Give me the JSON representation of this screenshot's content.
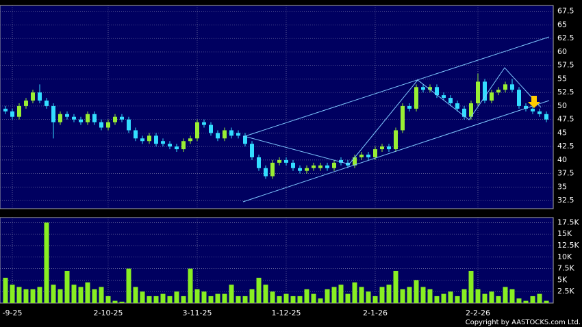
{
  "chart_data": {
    "type": "candlestick",
    "categories": [
      null,
      "-9-25",
      null,
      null,
      null,
      null,
      null,
      null,
      null,
      null,
      null,
      null,
      null,
      null,
      null,
      "2-10-25",
      null,
      null,
      null,
      null,
      null,
      null,
      null,
      null,
      null,
      null,
      null,
      null,
      "3-11-25",
      null,
      null,
      null,
      null,
      null,
      null,
      null,
      null,
      null,
      null,
      null,
      null,
      "1-12-25",
      null,
      null,
      null,
      null,
      null,
      null,
      null,
      null,
      null,
      null,
      null,
      null,
      "2-1-26",
      null,
      null,
      null,
      null,
      null,
      null,
      null,
      null,
      null,
      null,
      null,
      null,
      null,
      null,
      "2-2-26",
      null,
      null,
      null,
      null,
      null,
      null,
      null,
      null,
      null,
      null
    ],
    "open": [
      49.5,
      49,
      48,
      50,
      51,
      52.5,
      51,
      50,
      47,
      48.5,
      48,
      47.5,
      47,
      48.5,
      47,
      46,
      47,
      48,
      47.5,
      45.5,
      44,
      43.5,
      44.5,
      43.5,
      43,
      42.5,
      42,
      43.5,
      44,
      47,
      46.5,
      45,
      44,
      45.5,
      45,
      44.5,
      43,
      40.5,
      38.5,
      37,
      39.5,
      40,
      39.5,
      38.5,
      38,
      38.5,
      38.5,
      39,
      38.5,
      40,
      39.5,
      39,
      40.5,
      41,
      40.5,
      42,
      42.5,
      42,
      45.5,
      50,
      49.5,
      53.5,
      53,
      53.5,
      52,
      51.5,
      50.5,
      49.5,
      48,
      50.5,
      54.5,
      51,
      52.5,
      53,
      54,
      53,
      50,
      49.5,
      49,
      48.5
    ],
    "high": [
      50,
      49.5,
      50.5,
      51.5,
      53,
      54,
      51.5,
      50.5,
      49,
      49,
      48.5,
      48,
      49,
      49,
      47.5,
      47.5,
      48.5,
      48.5,
      48,
      46,
      44.5,
      45,
      45,
      44,
      43.5,
      43,
      44,
      44.5,
      47.5,
      47.5,
      47,
      45.5,
      46,
      46,
      45.5,
      45,
      43.5,
      41,
      39,
      40,
      40.5,
      40.5,
      40,
      39,
      39,
      39.5,
      39.5,
      39.5,
      40,
      40.5,
      40,
      41,
      41.5,
      41.5,
      42.5,
      43,
      43,
      46,
      50.5,
      50.5,
      54,
      54,
      54,
      54,
      52.5,
      52,
      51,
      50,
      51,
      56,
      55,
      53,
      53.5,
      54.5,
      55,
      53.5,
      50.5,
      50,
      49.5,
      49
    ],
    "low": [
      48.5,
      47.5,
      47.5,
      49.5,
      50.5,
      50.5,
      49.5,
      44,
      46.5,
      47.5,
      47,
      46.5,
      46.5,
      46.5,
      45.5,
      45.5,
      46.5,
      47,
      45,
      43.5,
      43,
      43,
      42.5,
      42.5,
      42,
      41.5,
      41.5,
      43,
      43.5,
      46,
      44.5,
      43.5,
      43.5,
      44,
      44,
      42.5,
      40,
      38,
      36.5,
      36.5,
      39,
      39,
      38,
      37.5,
      37.5,
      38,
      38,
      38,
      38,
      39,
      38.5,
      38.5,
      40,
      40,
      40,
      41.5,
      41.5,
      41.5,
      45,
      49,
      49,
      52.5,
      52.5,
      51.5,
      51,
      50,
      49,
      47.5,
      47.5,
      50,
      50.5,
      50.5,
      52,
      52.5,
      52.5,
      49.5,
      49,
      48.5,
      48,
      47
    ],
    "close": [
      49,
      48,
      50,
      51,
      52.5,
      51,
      50,
      47,
      48.5,
      48,
      47.5,
      47,
      48.5,
      47,
      46,
      47,
      48,
      47.5,
      45.5,
      44,
      43.5,
      44.5,
      43,
      43,
      42.5,
      42,
      43.5,
      44,
      47,
      46.5,
      45,
      44,
      45.5,
      44.5,
      44.5,
      43,
      40.5,
      38.5,
      37,
      39.5,
      40,
      39.5,
      38.5,
      38,
      38.5,
      39,
      39,
      38.5,
      39.5,
      39.5,
      39,
      40.5,
      41,
      40.5,
      42,
      42.5,
      42,
      45.5,
      50,
      49.5,
      53.5,
      53,
      53.5,
      52,
      51.5,
      50.5,
      49.5,
      48,
      50.5,
      54.5,
      51,
      52.5,
      53,
      54,
      53,
      50,
      49.5,
      49,
      48.5,
      47.5
    ],
    "volume": [
      5500,
      4000,
      3500,
      3000,
      3000,
      3500,
      17500,
      4000,
      3000,
      7000,
      4000,
      3500,
      4500,
      3000,
      3500,
      1500,
      500,
      300,
      7500,
      3500,
      2500,
      1500,
      1500,
      2000,
      1500,
      2500,
      1500,
      7500,
      3000,
      2500,
      1500,
      2000,
      2000,
      4000,
      1500,
      1500,
      3000,
      5500,
      4000,
      2500,
      1500,
      2000,
      1500,
      1500,
      3000,
      2000,
      1000,
      3000,
      3500,
      4000,
      2000,
      4500,
      3500,
      2500,
      1500,
      3500,
      4000,
      7000,
      3000,
      3500,
      5000,
      3500,
      3000,
      1500,
      2000,
      2500,
      1500,
      3000,
      7000,
      3000,
      2000,
      2500,
      1500,
      3500,
      3000,
      1000,
      500,
      1500,
      2000,
      500
    ],
    "up_color": "#99ee33",
    "down_color": "#33ddff",
    "volume_color": "#88ee22",
    "ylim": [
      31,
      68.6
    ],
    "yticks": [
      32.5,
      35,
      37.5,
      40,
      42.5,
      45,
      47.5,
      50,
      52.5,
      55,
      57.5,
      60,
      62.5,
      65,
      67.5
    ],
    "y2lim": [
      0,
      18600
    ],
    "y2ticks": [
      {
        "value": 2500,
        "label": "2.5K"
      },
      {
        "value": 5000,
        "label": "5K"
      },
      {
        "value": 7500,
        "label": "7.5K"
      },
      {
        "value": 10000,
        "label": "10K"
      },
      {
        "value": 12500,
        "label": "12.5K"
      },
      {
        "value": 15000,
        "label": "15K"
      },
      {
        "value": 17500,
        "label": "17.5K"
      }
    ],
    "grid": true,
    "copyright": "Copyright by AASTOCKS.com Ltd."
  }
}
